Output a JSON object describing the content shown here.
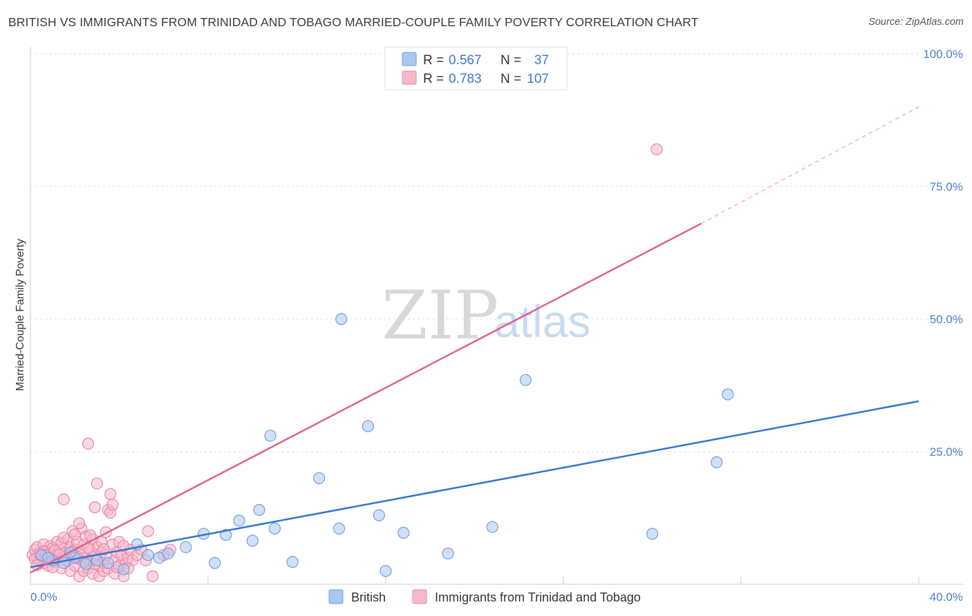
{
  "title": "BRITISH VS IMMIGRANTS FROM TRINIDAD AND TOBAGO MARRIED-COUPLE FAMILY POVERTY CORRELATION CHART",
  "source": "Source: ZipAtlas.com",
  "watermark": {
    "zip": "ZIP",
    "atlas": "atlas"
  },
  "colors": {
    "british_fill": "#a9c8ef",
    "british_stroke": "#6d9fe0",
    "british_line": "#2f74d0",
    "trinidad_fill": "#f5b8cb",
    "trinidad_stroke": "#ea86a6",
    "trinidad_line": "#e0608f"
  },
  "legend": {
    "r_label": "R =",
    "n_label": "N =",
    "british": {
      "r": "0.567",
      "n": "37"
    },
    "trinidad": {
      "r": "0.783",
      "n": "107"
    }
  },
  "chart_data": {
    "type": "scatter",
    "title": "BRITISH VS IMMIGRANTS FROM TRINIDAD AND TOBAGO MARRIED-COUPLE FAMILY POVERTY CORRELATION CHART",
    "xlabel": "",
    "ylabel": "Married-Couple Family Poverty",
    "xlim": [
      0,
      40
    ],
    "ylim": [
      0,
      100
    ],
    "x_ticks": [
      "0.0%",
      "40.0%"
    ],
    "y_ticks": [
      {
        "value": 25,
        "label": "25.0%"
      },
      {
        "value": 50,
        "label": "50.0%"
      },
      {
        "value": 75,
        "label": "75.0%"
      },
      {
        "value": 100,
        "label": "100.0%"
      }
    ],
    "grid": true,
    "legend_position": "top-center",
    "series": [
      {
        "name": "British",
        "trend": {
          "x": [
            0,
            40
          ],
          "y": [
            3.2,
            34.5
          ]
        },
        "points": [
          [
            0.5,
            5.5
          ],
          [
            1.0,
            4.5
          ],
          [
            1.5,
            4.0
          ],
          [
            2.0,
            5.0
          ],
          [
            3.0,
            4.5
          ],
          [
            3.5,
            4.0
          ],
          [
            4.2,
            2.8
          ],
          [
            4.8,
            7.5
          ],
          [
            5.3,
            5.5
          ],
          [
            5.8,
            5.0
          ],
          [
            6.2,
            5.8
          ],
          [
            7.0,
            7.0
          ],
          [
            7.8,
            9.5
          ],
          [
            8.3,
            4.0
          ],
          [
            8.8,
            9.3
          ],
          [
            9.4,
            12.0
          ],
          [
            10.0,
            8.2
          ],
          [
            10.3,
            14.0
          ],
          [
            10.8,
            28.0
          ],
          [
            11.0,
            10.5
          ],
          [
            11.8,
            4.2
          ],
          [
            13.0,
            20.0
          ],
          [
            13.9,
            10.5
          ],
          [
            14.0,
            50.0
          ],
          [
            15.2,
            29.8
          ],
          [
            15.7,
            13.0
          ],
          [
            16.0,
            2.5
          ],
          [
            16.8,
            9.7
          ],
          [
            18.8,
            5.8
          ],
          [
            20.8,
            10.8
          ],
          [
            22.3,
            38.5
          ],
          [
            28.0,
            9.5
          ],
          [
            30.9,
            23.0
          ],
          [
            31.4,
            35.8
          ],
          [
            0.8,
            5.0
          ],
          [
            1.8,
            6.0
          ],
          [
            2.5,
            3.8
          ]
        ]
      },
      {
        "name": "Immigrants from Trinidad and Tobago",
        "trend": {
          "x": [
            0,
            30.2
          ],
          "y": [
            2.2,
            68.0
          ]
        },
        "trend_dashed": {
          "x": [
            30.2,
            40
          ],
          "y": [
            68.0,
            90.0
          ]
        },
        "points": [
          [
            0.1,
            5.5
          ],
          [
            0.2,
            6.5
          ],
          [
            0.3,
            5.0
          ],
          [
            0.3,
            7.0
          ],
          [
            0.4,
            4.5
          ],
          [
            0.5,
            6.0
          ],
          [
            0.5,
            5.2
          ],
          [
            0.6,
            7.5
          ],
          [
            0.6,
            4.0
          ],
          [
            0.7,
            6.2
          ],
          [
            0.8,
            5.8
          ],
          [
            0.8,
            3.5
          ],
          [
            0.9,
            7.2
          ],
          [
            1.0,
            5.0
          ],
          [
            1.0,
            6.8
          ],
          [
            1.1,
            4.2
          ],
          [
            1.2,
            8.0
          ],
          [
            1.2,
            5.5
          ],
          [
            1.3,
            6.5
          ],
          [
            1.4,
            3.0
          ],
          [
            1.4,
            7.8
          ],
          [
            1.5,
            5.2
          ],
          [
            1.5,
            16.0
          ],
          [
            1.6,
            6.0
          ],
          [
            1.7,
            4.5
          ],
          [
            1.7,
            8.5
          ],
          [
            1.8,
            2.5
          ],
          [
            1.8,
            7.0
          ],
          [
            1.9,
            5.5
          ],
          [
            1.9,
            10.0
          ],
          [
            2.0,
            6.5
          ],
          [
            2.0,
            3.5
          ],
          [
            2.1,
            8.0
          ],
          [
            2.2,
            4.8
          ],
          [
            2.2,
            1.5
          ],
          [
            2.3,
            10.5
          ],
          [
            2.3,
            6.0
          ],
          [
            2.4,
            7.5
          ],
          [
            2.4,
            2.5
          ],
          [
            2.5,
            5.0
          ],
          [
            2.5,
            9.0
          ],
          [
            2.6,
            3.0
          ],
          [
            2.6,
            26.5
          ],
          [
            2.7,
            6.5
          ],
          [
            2.7,
            4.5
          ],
          [
            2.8,
            8.5
          ],
          [
            2.8,
            2.0
          ],
          [
            2.9,
            14.5
          ],
          [
            2.9,
            5.5
          ],
          [
            3.0,
            19.0
          ],
          [
            3.0,
            7.0
          ],
          [
            3.1,
            3.5
          ],
          [
            3.1,
            1.5
          ],
          [
            3.2,
            6.0
          ],
          [
            3.2,
            8.0
          ],
          [
            3.3,
            4.0
          ],
          [
            3.3,
            2.5
          ],
          [
            3.4,
            5.5
          ],
          [
            3.5,
            14.0
          ],
          [
            3.5,
            3.0
          ],
          [
            3.6,
            17.0
          ],
          [
            3.6,
            13.5
          ],
          [
            3.7,
            15.0
          ],
          [
            3.7,
            7.5
          ],
          [
            3.8,
            4.5
          ],
          [
            3.8,
            2.0
          ],
          [
            3.9,
            6.0
          ],
          [
            4.0,
            8.0
          ],
          [
            4.0,
            3.5
          ],
          [
            4.1,
            5.5
          ],
          [
            4.2,
            1.5
          ],
          [
            4.3,
            4.0
          ],
          [
            4.4,
            5.0
          ],
          [
            4.5,
            6.5
          ],
          [
            4.6,
            4.5
          ],
          [
            4.8,
            5.5
          ],
          [
            5.0,
            6.5
          ],
          [
            5.2,
            4.5
          ],
          [
            5.3,
            10.0
          ],
          [
            5.5,
            1.5
          ],
          [
            6.0,
            5.5
          ],
          [
            6.3,
            6.5
          ],
          [
            0.2,
            4.8
          ],
          [
            0.4,
            5.8
          ],
          [
            0.6,
            6.2
          ],
          [
            0.9,
            4.6
          ],
          [
            1.1,
            6.4
          ],
          [
            1.3,
            5.6
          ],
          [
            1.6,
            4.4
          ],
          [
            1.9,
            6.2
          ],
          [
            2.1,
            5.2
          ],
          [
            2.4,
            4.2
          ],
          [
            2.6,
            6.8
          ],
          [
            2.9,
            3.8
          ],
          [
            3.3,
            6.6
          ],
          [
            3.9,
            3.2
          ],
          [
            4.2,
            7.2
          ],
          [
            0.3,
            3.6
          ],
          [
            0.7,
            5.4
          ],
          [
            1.0,
            3.2
          ],
          [
            1.5,
            8.8
          ],
          [
            2.0,
            9.4
          ],
          [
            2.7,
            9.2
          ],
          [
            3.4,
            9.8
          ],
          [
            4.4,
            3.0
          ],
          [
            2.2,
            11.5
          ],
          [
            28.2,
            82.0
          ]
        ]
      }
    ]
  }
}
